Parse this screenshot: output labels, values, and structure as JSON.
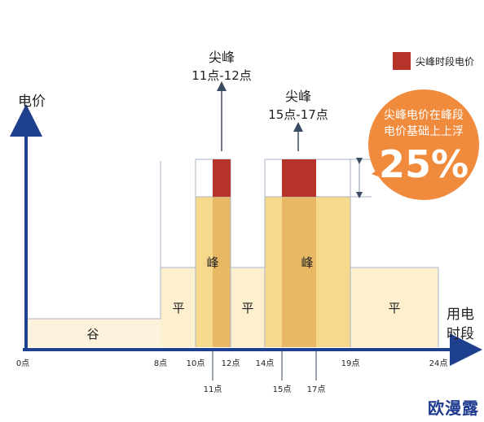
{
  "title": "",
  "y_axis_label": "电价",
  "x_axis_label_line1": "用电",
  "x_axis_label_line2": "时段",
  "legend_label": "尖峰时段电价",
  "peak_label_1_line1": "尖峰",
  "peak_label_1_line2": "11点-12点",
  "peak_label_2_line1": "尖峰",
  "peak_label_2_line2": "15点-17点",
  "badge_line1": "尖峰电价在峰段",
  "badge_line2": "电价基础上上浮",
  "badge_value": "25%",
  "watermark": "欧漫露",
  "colors": {
    "axis": "#1f3f8f",
    "valley": "#fdf2dc",
    "flat": "#fdf0cf",
    "peak": "#f6d98c",
    "peak_overlap": "#e8b864",
    "sharp_peak": "#b6332a",
    "badge": "#f08a3c"
  },
  "chart_data": {
    "type": "bar",
    "x_unit": "点",
    "price_levels": {
      "谷": 1,
      "平": 2,
      "峰": 4,
      "尖峰": 5
    },
    "segments": [
      {
        "label": "谷",
        "start": 0,
        "end": 8,
        "level": "谷"
      },
      {
        "label": "平",
        "start": 8,
        "end": 10,
        "level": "平"
      },
      {
        "label": "峰",
        "start": 10,
        "end": 12,
        "level": "峰"
      },
      {
        "label": "平",
        "start": 12,
        "end": 14,
        "level": "平"
      },
      {
        "label": "峰",
        "start": 14,
        "end": 19,
        "level": "峰"
      },
      {
        "label": "平",
        "start": 19,
        "end": 24,
        "level": "平"
      }
    ],
    "sharp_peaks": [
      {
        "start": 11,
        "end": 12
      },
      {
        "start": 15,
        "end": 17
      }
    ],
    "ticks_above": [
      "0点",
      "8点",
      "10点",
      "12点",
      "14点",
      "19点",
      "24点"
    ],
    "ticks_below": [
      "11点",
      "15点",
      "17点"
    ]
  }
}
